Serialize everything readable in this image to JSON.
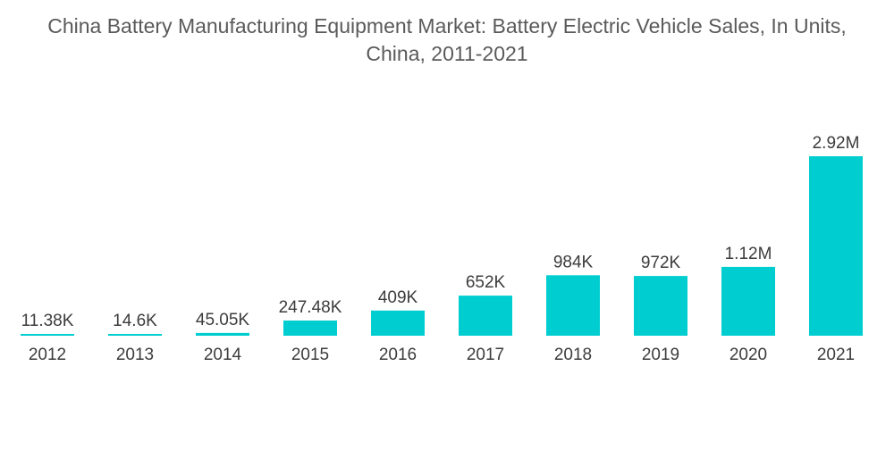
{
  "chart_data": {
    "type": "bar",
    "title": "China Battery Manufacturing Equipment Market: Battery Electric Vehicle Sales, In Units,\nChina, 2011-2021",
    "xlabel": "",
    "ylabel": "",
    "categories": [
      "2012",
      "2013",
      "2014",
      "2015",
      "2016",
      "2017",
      "2018",
      "2019",
      "2020",
      "2021"
    ],
    "values": [
      11380,
      14600,
      45050,
      247480,
      409000,
      652000,
      984000,
      972000,
      1120000,
      2920000
    ],
    "value_labels": [
      "11.38K",
      "14.6K",
      "45.05K",
      "247.48K",
      "409K",
      "652K",
      "984K",
      "972K",
      "1.12M",
      "2.92M"
    ],
    "ylim": [
      0,
      2920000
    ],
    "grid": false,
    "legend": "none",
    "bar_color": "#00CDD0"
  }
}
